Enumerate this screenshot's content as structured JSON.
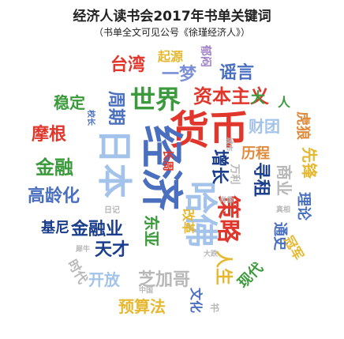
{
  "title": "经济人读书会2017年书单关键词",
  "subtitle": "（书单全文可见公号《徐瑾经济人》）",
  "words": [
    {
      "text": "货币",
      "color": "#e0362b"
    },
    {
      "text": "经济",
      "color": "#4a6fbf"
    },
    {
      "text": "日本",
      "color": "#a3c3ea"
    },
    {
      "text": "世界",
      "color": "#3b9a3b"
    },
    {
      "text": "哈佛",
      "color": "#a3c3ea"
    },
    {
      "text": "资本主义",
      "color": "#e0362b"
    },
    {
      "text": "金融业",
      "color": "#1b3f8c"
    },
    {
      "text": "策略",
      "color": "#e0362b"
    },
    {
      "text": "芝加哥",
      "color": "#b8b8b8"
    },
    {
      "text": "天才",
      "color": "#1b3f8c"
    },
    {
      "text": "金融",
      "color": "#3b9a3b"
    },
    {
      "text": "高龄化",
      "color": "#4a6fbf"
    },
    {
      "text": "摩根",
      "color": "#e0362b"
    },
    {
      "text": "稳定",
      "color": "#3b9a3b"
    },
    {
      "text": "台湾",
      "color": "#e0362b"
    },
    {
      "text": "谣言",
      "color": "#4a6fbf"
    },
    {
      "text": "一梦",
      "color": "#7b8fd8"
    },
    {
      "text": "周期",
      "color": "#4a6fbf"
    },
    {
      "text": "预算法",
      "color": "#e6b830"
    },
    {
      "text": "开放",
      "color": "#a3c3ea"
    },
    {
      "text": "东亚",
      "color": "#3b9a3b"
    },
    {
      "text": "财团",
      "color": "#a3c3ea"
    },
    {
      "text": "历程",
      "color": "#e08a3c"
    },
    {
      "text": "寻租",
      "color": "#1b3f8c"
    },
    {
      "text": "商业",
      "color": "#b8b8b8"
    },
    {
      "text": "增长",
      "color": "#1b3f8c"
    },
    {
      "text": "长周",
      "color": "#e0362b"
    },
    {
      "text": "起源",
      "color": "#e6b830"
    },
    {
      "text": "先锋",
      "color": "#e6b830"
    },
    {
      "text": "大",
      "color": "#3b9a3b"
    },
    {
      "text": "人生",
      "color": "#e6b830"
    },
    {
      "text": "现代",
      "color": "#3b9a3b"
    },
    {
      "text": "理论",
      "color": "#4a6fbf"
    },
    {
      "text": "通史",
      "color": "#4a6fbf"
    },
    {
      "text": "冠军",
      "color": "#e6b830"
    },
    {
      "text": "虎狼",
      "color": "#e08a3c"
    },
    {
      "text": "文化",
      "color": "#4a6fbf"
    },
    {
      "text": "基尼",
      "color": "#1b3f8c"
    },
    {
      "text": "时代",
      "color": "#b8b8b8"
    },
    {
      "text": "改革",
      "color": "#e6b830"
    },
    {
      "text": "万利",
      "color": "#b8b8b8"
    },
    {
      "text": "郁闷",
      "color": "#a080c8"
    },
    {
      "text": "人",
      "color": "#3b9a3b"
    },
    {
      "text": "日记",
      "color": "#b8b8b8"
    },
    {
      "text": "校长",
      "color": "#4a6fbf"
    },
    {
      "text": "肖像",
      "color": "#b8b8b8"
    },
    {
      "text": "真相",
      "color": "#b8b8b8"
    },
    {
      "text": "大跌",
      "color": "#b8b8b8"
    },
    {
      "text": "城市",
      "color": "#b8b8b8"
    },
    {
      "text": "犀牛",
      "color": "#b8b8b8"
    },
    {
      "text": "中国",
      "color": "#b8b8b8"
    },
    {
      "text": "书",
      "color": "#b8b8b8"
    }
  ]
}
